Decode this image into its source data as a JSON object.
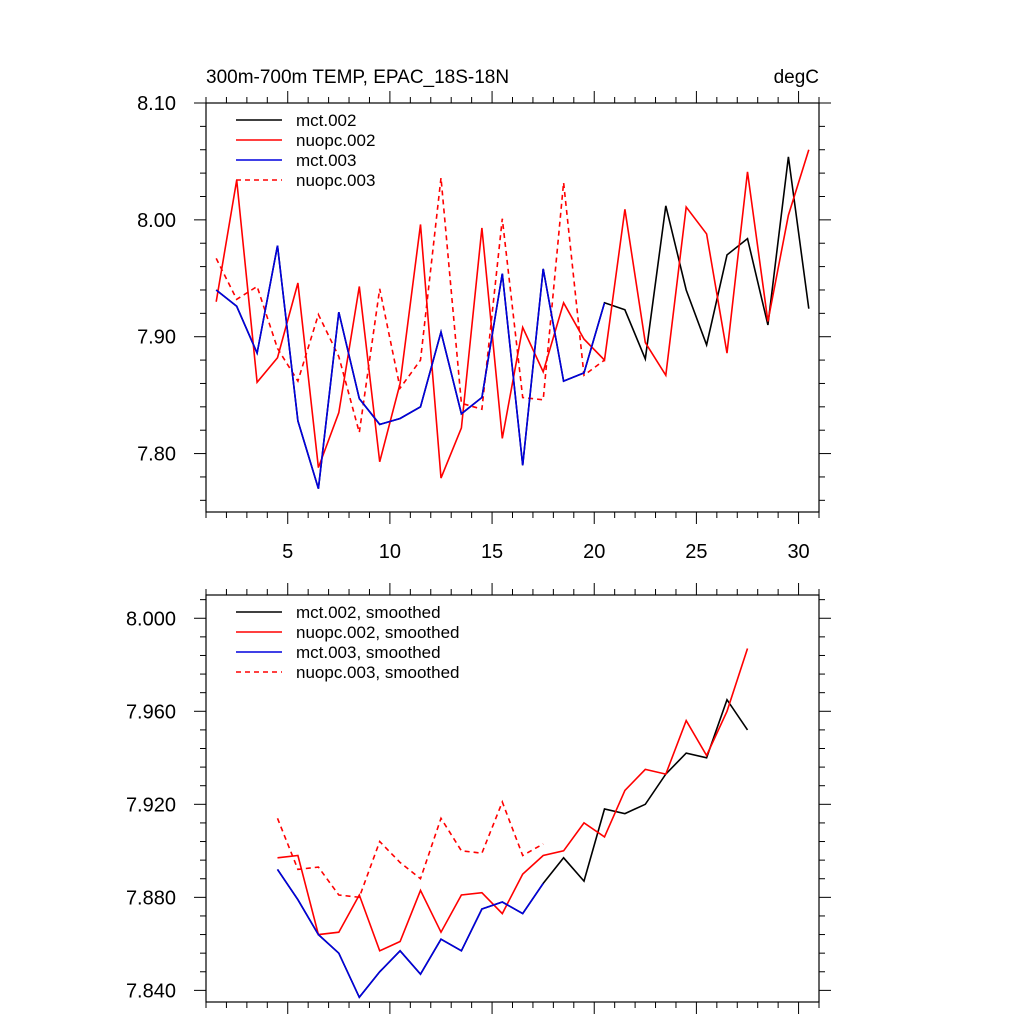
{
  "chart_data": [
    {
      "type": "line",
      "title": "300m-700m TEMP, EPAC_18S-18N",
      "units": "degC",
      "xlabel": "",
      "ylabel": "",
      "xlim": [
        1,
        31
      ],
      "ylim": [
        7.75,
        8.1
      ],
      "xticks": [
        5,
        10,
        15,
        20,
        25,
        30
      ],
      "xtick_labels": [
        "5",
        "10",
        "15",
        "20",
        "25",
        "30"
      ],
      "yticks": [
        7.8,
        7.9,
        8.0,
        8.1
      ],
      "ytick_labels": [
        "7.80",
        "7.90",
        "8.00",
        "8.10"
      ],
      "legend_position": "top-left",
      "series": [
        {
          "name": "mct.002",
          "color": "#000000",
          "dash": "solid",
          "x": [
            1.5,
            2.5,
            3.5,
            4.5,
            5.5,
            6.5,
            7.5,
            8.5,
            9.5,
            10.5,
            11.5,
            12.5,
            13.5,
            14.5,
            15.5,
            16.5,
            17.5,
            18.5,
            19.5,
            20.5,
            21.5,
            22.5,
            23.5,
            24.5,
            25.5,
            26.5,
            27.5,
            28.5,
            29.5,
            30.5
          ],
          "values": [
            7.94,
            7.926,
            7.886,
            7.978,
            7.828,
            7.77,
            7.921,
            7.847,
            7.825,
            7.83,
            7.84,
            7.904,
            7.834,
            7.848,
            7.954,
            7.79,
            7.958,
            7.862,
            7.869,
            7.929,
            7.923,
            7.881,
            8.012,
            7.94,
            7.893,
            7.97,
            7.984,
            7.91,
            8.054,
            7.924
          ]
        },
        {
          "name": "nuopc.002",
          "color": "#ff0000",
          "dash": "solid",
          "x": [
            1.5,
            2.5,
            3.5,
            4.5,
            5.5,
            6.5,
            7.5,
            8.5,
            9.5,
            10.5,
            11.5,
            12.5,
            13.5,
            14.5,
            15.5,
            16.5,
            17.5,
            18.5,
            19.5,
            20.5,
            21.5,
            22.5,
            23.5,
            24.5,
            25.5,
            26.5,
            27.5,
            28.5,
            29.5,
            30.5
          ],
          "values": [
            7.93,
            8.034,
            7.861,
            7.882,
            7.946,
            7.788,
            7.835,
            7.943,
            7.793,
            7.86,
            7.996,
            7.779,
            7.822,
            7.993,
            7.813,
            7.908,
            7.87,
            7.929,
            7.898,
            7.88,
            8.009,
            7.895,
            7.867,
            8.011,
            7.988,
            7.886,
            8.041,
            7.913,
            8.004,
            8.06
          ]
        },
        {
          "name": "mct.003",
          "color": "#0000dd",
          "dash": "solid",
          "x": [
            1.5,
            2.5,
            3.5,
            4.5,
            5.5,
            6.5,
            7.5,
            8.5,
            9.5,
            10.5,
            11.5,
            12.5,
            13.5,
            14.5,
            15.5,
            16.5,
            17.5,
            18.5,
            19.5,
            20.5
          ],
          "values": [
            7.94,
            7.926,
            7.886,
            7.978,
            7.828,
            7.77,
            7.921,
            7.847,
            7.825,
            7.83,
            7.84,
            7.904,
            7.834,
            7.848,
            7.954,
            7.79,
            7.958,
            7.862,
            7.869,
            7.929
          ]
        },
        {
          "name": "nuopc.003",
          "color": "#ff0000",
          "dash": "dashed",
          "x": [
            1.5,
            2.5,
            3.5,
            4.5,
            5.5,
            6.5,
            7.5,
            8.5,
            9.5,
            10.5,
            11.5,
            12.5,
            13.5,
            14.5,
            15.5,
            16.5,
            17.5,
            18.5,
            19.5,
            20.5
          ],
          "values": [
            7.967,
            7.932,
            7.943,
            7.89,
            7.862,
            7.919,
            7.883,
            7.818,
            7.941,
            7.856,
            7.88,
            8.036,
            7.843,
            7.838,
            8.001,
            7.848,
            7.846,
            8.032,
            7.867,
            7.88
          ]
        }
      ]
    },
    {
      "type": "line",
      "title": "",
      "xlabel": "",
      "ylabel": "",
      "xlim": [
        1,
        31
      ],
      "ylim": [
        7.835,
        8.01
      ],
      "xticks": [
        5,
        10,
        15,
        20,
        25,
        30
      ],
      "yticks": [
        7.84,
        7.88,
        7.92,
        7.96,
        8.0
      ],
      "ytick_labels": [
        "7.840",
        "7.880",
        "7.920",
        "7.960",
        "8.000"
      ],
      "legend_position": "top-left",
      "series": [
        {
          "name": "mct.002, smoothed",
          "color": "#000000",
          "dash": "solid",
          "x": [
            4.5,
            5.5,
            6.5,
            7.5,
            8.5,
            9.5,
            10.5,
            11.5,
            12.5,
            13.5,
            14.5,
            15.5,
            16.5,
            17.5,
            18.5,
            19.5,
            20.5,
            21.5,
            22.5,
            23.5,
            24.5,
            25.5,
            26.5,
            27.5
          ],
          "values": [
            7.892,
            7.879,
            7.864,
            7.856,
            7.837,
            7.848,
            7.857,
            7.847,
            7.862,
            7.857,
            7.875,
            7.878,
            7.873,
            7.886,
            7.897,
            7.887,
            7.918,
            7.916,
            7.92,
            7.933,
            7.942,
            7.94,
            7.965,
            7.952
          ]
        },
        {
          "name": "nuopc.002, smoothed",
          "color": "#ff0000",
          "dash": "solid",
          "x": [
            4.5,
            5.5,
            6.5,
            7.5,
            8.5,
            9.5,
            10.5,
            11.5,
            12.5,
            13.5,
            14.5,
            15.5,
            16.5,
            17.5,
            18.5,
            19.5,
            20.5,
            21.5,
            22.5,
            23.5,
            24.5,
            25.5,
            26.5,
            27.5
          ],
          "values": [
            7.897,
            7.898,
            7.864,
            7.865,
            7.881,
            7.857,
            7.861,
            7.883,
            7.865,
            7.881,
            7.882,
            7.873,
            7.89,
            7.898,
            7.9,
            7.912,
            7.906,
            7.926,
            7.935,
            7.933,
            7.956,
            7.941,
            7.96,
            7.987
          ]
        },
        {
          "name": "mct.003, smoothed",
          "color": "#0000dd",
          "dash": "solid",
          "x": [
            4.5,
            5.5,
            6.5,
            7.5,
            8.5,
            9.5,
            10.5,
            11.5,
            12.5,
            13.5,
            14.5,
            15.5,
            16.5,
            17.5
          ],
          "values": [
            7.892,
            7.879,
            7.864,
            7.856,
            7.837,
            7.848,
            7.857,
            7.847,
            7.862,
            7.857,
            7.875,
            7.878,
            7.873,
            7.886
          ]
        },
        {
          "name": "nuopc.003, smoothed",
          "color": "#ff0000",
          "dash": "dashed",
          "x": [
            4.5,
            5.5,
            6.5,
            7.5,
            8.5,
            9.5,
            10.5,
            11.5,
            12.5,
            13.5,
            14.5,
            15.5,
            16.5,
            17.5
          ],
          "values": [
            7.914,
            7.892,
            7.893,
            7.881,
            7.88,
            7.904,
            7.895,
            7.888,
            7.914,
            7.9,
            7.899,
            7.921,
            7.898,
            7.903
          ]
        }
      ]
    }
  ]
}
